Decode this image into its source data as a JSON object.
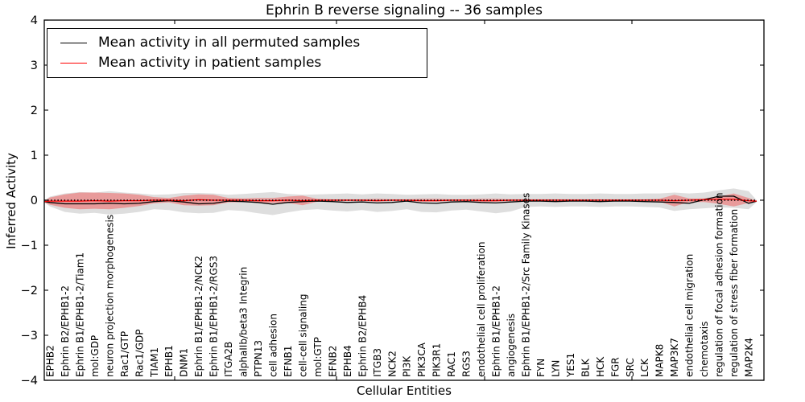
{
  "chart_data": {
    "type": "line",
    "title": "Ephrin B reverse signaling -- 36 samples",
    "xlabel": "Cellular Entities",
    "ylabel": "Inferred Activity",
    "ylim": [
      -4,
      4
    ],
    "grid": false,
    "legend_position": "upper left",
    "yticks": [
      4,
      3,
      2,
      1,
      0,
      -1,
      -2,
      -3,
      -4
    ],
    "yticklabels": [
      "4",
      "3",
      "2",
      "1",
      "0",
      "−1",
      "−2",
      "−3",
      "−4"
    ],
    "reference_line": {
      "y": 0,
      "style": "dotted",
      "color": "#000000"
    },
    "categories": [
      "EPHB2",
      "Ephrin B2/EPHB1-2",
      "Ephrin B1/EPHB1-2/Tiam1",
      "mol:GDP",
      "neuron projection morphogenesis",
      "Rac1/GTP",
      "Rac1/GDP",
      "TIAM1",
      "EPHB1",
      "DNM1",
      "Ephrin B1/EPHB1-2/NCK2",
      "Ephrin B1/EPHB1-2/RGS3",
      "ITGA2B",
      "alphaIIb/beta3 Integrin",
      "PTPN13",
      "cell adhesion",
      "EFNB1",
      "cell-cell signaling",
      "mol:GTP",
      "EFNB2",
      "EPHB4",
      "Ephrin B2/EPHB4",
      "ITGB3",
      "NCK2",
      "PI3K",
      "PIK3CA",
      "PIK3R1",
      "RAC1",
      "RGS3",
      "endothelial cell proliferation",
      "Ephrin B1/EPHB1-2",
      "angiogenesis",
      "Ephrin B1/EPHB1-2/Src Family Kinases",
      "FYN",
      "LYN",
      "YES1",
      "BLK",
      "HCK",
      "FGR",
      "SRC",
      "LCK",
      "MAPK8",
      "MAP3K7",
      "endothelial cell migration",
      "chemotaxis",
      "regulation of focal adhesion formation",
      "regulation of stress fiber formation",
      "MAP2K4"
    ],
    "series": [
      {
        "name": "Mean activity in all permuted samples",
        "type": "line",
        "color": "#000000",
        "edge_start": -0.03,
        "edge_end": -0.02,
        "values": [
          -0.05,
          -0.08,
          -0.08,
          -0.08,
          -0.07,
          -0.08,
          -0.07,
          -0.03,
          -0.01,
          -0.04,
          -0.08,
          -0.07,
          -0.02,
          -0.03,
          -0.05,
          -0.09,
          -0.05,
          -0.03,
          -0.02,
          -0.03,
          -0.05,
          -0.04,
          -0.06,
          -0.05,
          -0.02,
          -0.06,
          -0.07,
          -0.04,
          -0.03,
          -0.05,
          -0.06,
          -0.04,
          -0.02,
          -0.02,
          -0.03,
          -0.02,
          -0.02,
          -0.03,
          -0.02,
          -0.02,
          -0.03,
          -0.04,
          -0.05,
          -0.07,
          0.01,
          0.09,
          0.09,
          -0.07
        ]
      },
      {
        "name": "Mean activity in patient samples",
        "type": "line",
        "color": "#ff0000",
        "edge_start": -0.03,
        "edge_end": -0.02,
        "values": [
          -0.02,
          -0.02,
          -0.02,
          -0.01,
          -0.02,
          -0.01,
          -0.01,
          0,
          0,
          -0.01,
          0.01,
          0,
          0,
          0,
          -0.01,
          -0.01,
          0,
          -0.01,
          0,
          0,
          0,
          0,
          -0.01,
          0,
          0,
          -0.01,
          -0.01,
          0,
          0,
          -0.01,
          -0.01,
          0,
          0,
          0,
          0,
          0,
          0,
          0,
          0,
          0,
          0,
          0,
          -0.01,
          0,
          0.01,
          0.02,
          0.02,
          -0.01
        ]
      },
      {
        "name": "Permuted samples std band",
        "type": "band",
        "color": "rgba(0,0,0,0.13)",
        "edge_start_upper": -0.01,
        "edge_start_lower": -0.05,
        "edge_end_upper": 0.0,
        "edge_end_lower": -0.04,
        "upper": [
          0.08,
          0.15,
          0.18,
          0.17,
          0.2,
          0.17,
          0.15,
          0.12,
          0.13,
          0.16,
          0.16,
          0.15,
          0.12,
          0.14,
          0.16,
          0.18,
          0.14,
          0.12,
          0.13,
          0.14,
          0.15,
          0.13,
          0.15,
          0.14,
          0.12,
          0.13,
          0.14,
          0.12,
          0.12,
          0.13,
          0.15,
          0.13,
          0.14,
          0.14,
          0.15,
          0.14,
          0.14,
          0.15,
          0.14,
          0.14,
          0.15,
          0.15,
          0.17,
          0.15,
          0.17,
          0.22,
          0.26,
          0.2
        ],
        "lower": [
          -0.14,
          -0.26,
          -0.3,
          -0.28,
          -0.32,
          -0.3,
          -0.26,
          -0.2,
          -0.22,
          -0.27,
          -0.29,
          -0.28,
          -0.22,
          -0.24,
          -0.29,
          -0.33,
          -0.27,
          -0.22,
          -0.2,
          -0.23,
          -0.25,
          -0.22,
          -0.26,
          -0.24,
          -0.2,
          -0.26,
          -0.27,
          -0.23,
          -0.21,
          -0.25,
          -0.29,
          -0.25,
          -0.15,
          -0.14,
          -0.15,
          -0.14,
          -0.14,
          -0.15,
          -0.14,
          -0.14,
          -0.15,
          -0.16,
          -0.24,
          -0.2,
          -0.18,
          -0.16,
          -0.17,
          -0.2
        ]
      },
      {
        "name": "Patient samples std band",
        "type": "band",
        "color": "rgba(255,0,0,0.30)",
        "edge_start_upper": -0.01,
        "edge_start_lower": -0.05,
        "edge_end_upper": -0.01,
        "edge_end_lower": -0.03,
        "upper": [
          0.06,
          0.13,
          0.17,
          0.17,
          0.16,
          0.15,
          0.12,
          0.07,
          0.05,
          0.1,
          0.13,
          0.12,
          0.05,
          0.04,
          0.05,
          0.05,
          0.08,
          0.1,
          0.03,
          0.02,
          0.02,
          0.02,
          0.03,
          0.02,
          0.02,
          0.03,
          0.03,
          0.02,
          0.02,
          0.03,
          0.03,
          0.02,
          0.02,
          0.02,
          0.02,
          0.02,
          0.02,
          0.02,
          0.02,
          0.02,
          0.02,
          0.03,
          0.12,
          0.04,
          0.04,
          0.08,
          0.15,
          0.05
        ],
        "lower": [
          -0.1,
          -0.17,
          -0.2,
          -0.19,
          -0.2,
          -0.17,
          -0.13,
          -0.07,
          -0.05,
          -0.11,
          -0.12,
          -0.11,
          -0.05,
          -0.04,
          -0.06,
          -0.06,
          -0.06,
          -0.11,
          -0.03,
          -0.02,
          -0.02,
          -0.02,
          -0.03,
          -0.02,
          -0.02,
          -0.03,
          -0.03,
          -0.02,
          -0.02,
          -0.03,
          -0.03,
          -0.02,
          -0.02,
          -0.02,
          -0.02,
          -0.02,
          -0.02,
          -0.02,
          -0.02,
          -0.02,
          -0.02,
          -0.03,
          -0.14,
          -0.04,
          -0.04,
          -0.08,
          -0.14,
          -0.06
        ]
      }
    ]
  }
}
